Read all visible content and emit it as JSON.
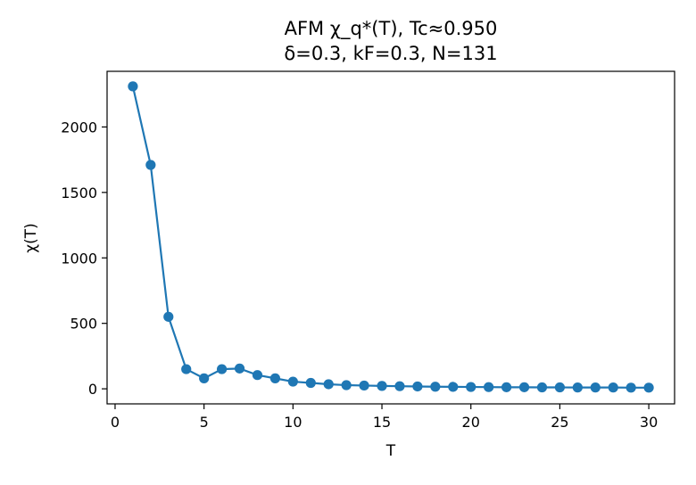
{
  "chart_data": {
    "type": "line",
    "title_line1": "AFM χ_q*(T), Tc≈0.950",
    "title_line2": "δ=0.3, kF=0.3, N=131",
    "xlabel": "T",
    "ylabel": "χ(T)",
    "xlim": [
      -0.45,
      31.45
    ],
    "ylim": [
      -115,
      2425
    ],
    "xticks": [
      0,
      5,
      10,
      15,
      20,
      25,
      30
    ],
    "yticks": [
      0,
      500,
      1000,
      1500,
      2000
    ],
    "grid": false,
    "legend": "none",
    "series": [
      {
        "color": "#1f77b4",
        "x": [
          1,
          2,
          3,
          4,
          5,
          6,
          7,
          8,
          9,
          10,
          11,
          12,
          13,
          14,
          15,
          16,
          17,
          18,
          19,
          20,
          21,
          22,
          23,
          24,
          25,
          26,
          27,
          28,
          29,
          30
        ],
        "y": [
          2310,
          1710,
          550,
          150,
          80,
          150,
          155,
          105,
          80,
          55,
          45,
          35,
          28,
          25,
          22,
          20,
          18,
          16,
          15,
          14,
          13,
          12,
          12,
          11,
          11,
          10,
          10,
          10,
          9,
          9
        ]
      }
    ]
  }
}
